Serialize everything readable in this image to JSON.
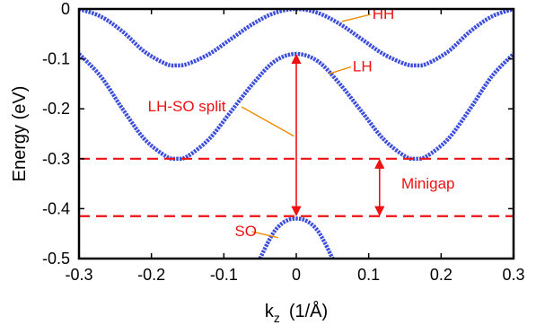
{
  "chart_data": {
    "type": "line",
    "xlabel": "k",
    "xlabel_subscript": "z",
    "xlabel_units": "(1/Å)",
    "ylabel": "Energy (eV)",
    "xlim": [
      -0.3,
      0.3
    ],
    "ylim": [
      -0.5,
      0
    ],
    "xticks": [
      "-0.3",
      "-0.2",
      "-0.1",
      "0",
      "0.1",
      "0.2",
      "0.3"
    ],
    "yticks": [
      "0",
      "-0.1",
      "-0.2",
      "-0.3",
      "-0.4",
      "-0.5"
    ],
    "grid": false,
    "series": [
      {
        "name": "HH",
        "color": "#1a2ed6",
        "x": [
          -0.3,
          -0.27,
          -0.24,
          -0.21,
          -0.18,
          -0.165,
          -0.15,
          -0.12,
          -0.09,
          -0.06,
          -0.03,
          0,
          0.03,
          0.06,
          0.09,
          0.12,
          0.15,
          0.165,
          0.18,
          0.21,
          0.24,
          0.27,
          0.3
        ],
        "y": [
          0,
          -0.015,
          -0.045,
          -0.085,
          -0.11,
          -0.113,
          -0.11,
          -0.09,
          -0.06,
          -0.03,
          -0.008,
          0,
          -0.008,
          -0.03,
          -0.06,
          -0.09,
          -0.11,
          -0.113,
          -0.11,
          -0.085,
          -0.045,
          -0.015,
          0
        ]
      },
      {
        "name": "LH",
        "color": "#1a2ed6",
        "x": [
          -0.3,
          -0.27,
          -0.24,
          -0.21,
          -0.18,
          -0.165,
          -0.15,
          -0.12,
          -0.09,
          -0.06,
          -0.03,
          0,
          0.03,
          0.06,
          0.09,
          0.12,
          0.15,
          0.165,
          0.18,
          0.21,
          0.24,
          0.27,
          0.3
        ],
        "y": [
          -0.09,
          -0.135,
          -0.2,
          -0.26,
          -0.295,
          -0.3,
          -0.295,
          -0.26,
          -0.205,
          -0.15,
          -0.105,
          -0.09,
          -0.105,
          -0.15,
          -0.205,
          -0.26,
          -0.295,
          -0.3,
          -0.295,
          -0.26,
          -0.2,
          -0.135,
          -0.09
        ]
      },
      {
        "name": "SO",
        "color": "#1a2ed6",
        "x": [
          -0.05,
          -0.04,
          -0.03,
          -0.02,
          -0.01,
          0,
          0.01,
          0.02,
          0.03,
          0.04,
          0.05
        ],
        "y": [
          -0.5,
          -0.47,
          -0.445,
          -0.43,
          -0.422,
          -0.42,
          -0.422,
          -0.43,
          -0.445,
          -0.47,
          -0.5
        ]
      }
    ],
    "reference_lines": [
      {
        "y": -0.3,
        "color": "#ee1111",
        "style": "dashed"
      },
      {
        "y": -0.415,
        "color": "#ee1111",
        "style": "dashed"
      }
    ],
    "annotations": [
      {
        "text": "HH",
        "x": 0.105,
        "y": -0.02,
        "target": [
          0.063,
          -0.025
        ]
      },
      {
        "text": "LH",
        "x": 0.078,
        "y": -0.125,
        "target": [
          0.045,
          -0.13
        ]
      },
      {
        "text": "LH-SO split",
        "x": -0.205,
        "y": -0.205,
        "target": [
          -0.003,
          -0.255
        ]
      },
      {
        "text": "Minigap",
        "x": 0.145,
        "y": -0.36
      },
      {
        "text": "SO",
        "x": -0.085,
        "y": -0.455,
        "target": [
          -0.025,
          -0.458
        ]
      }
    ],
    "arrows": [
      {
        "x": 0,
        "y1": -0.09,
        "y2": -0.415,
        "color": "#ee1111"
      },
      {
        "x": 0.115,
        "y1": -0.3,
        "y2": -0.415,
        "color": "#ee1111"
      }
    ]
  }
}
